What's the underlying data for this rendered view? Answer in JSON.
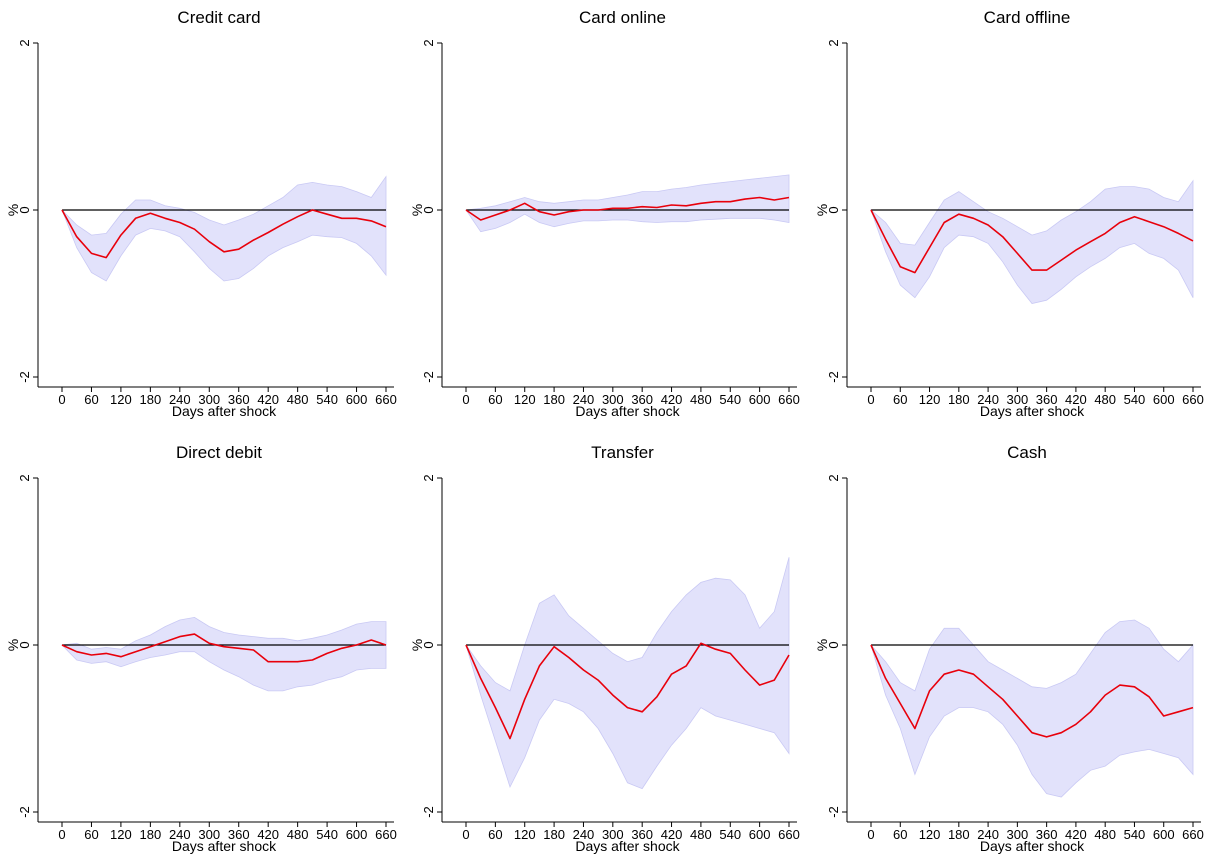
{
  "figure": {
    "background": "#ffffff"
  },
  "style": {
    "band_color": "#e2e2fb",
    "band_edge_color": "#c9c9f4",
    "line_color": "#e8000b",
    "zero_color": "#000000"
  },
  "chart_data": [
    {
      "type": "line",
      "title": "Credit card",
      "xlabel": "Days after shock",
      "ylabel": "%",
      "xlim": [
        0,
        660
      ],
      "ylim": [
        -2,
        2
      ],
      "xticks": [
        0,
        60,
        120,
        180,
        240,
        300,
        360,
        420,
        480,
        540,
        600,
        660
      ],
      "yticks": [
        -2,
        0,
        2
      ],
      "x": [
        0,
        30,
        60,
        90,
        120,
        150,
        180,
        210,
        240,
        270,
        300,
        330,
        360,
        390,
        420,
        450,
        480,
        510,
        540,
        570,
        600,
        630,
        660
      ],
      "series": [
        {
          "role": "estimate",
          "values": [
            0,
            -0.32,
            -0.52,
            -0.57,
            -0.3,
            -0.1,
            -0.04,
            -0.1,
            -0.15,
            -0.23,
            -0.38,
            -0.5,
            -0.47,
            -0.36,
            -0.27,
            -0.17,
            -0.08,
            0.0,
            -0.05,
            -0.1,
            -0.1,
            -0.13,
            -0.2
          ]
        },
        {
          "role": "upper",
          "values": [
            0,
            -0.18,
            -0.3,
            -0.28,
            -0.05,
            0.12,
            0.12,
            0.05,
            0.02,
            -0.03,
            -0.12,
            -0.18,
            -0.12,
            -0.05,
            0.05,
            0.15,
            0.3,
            0.33,
            0.3,
            0.28,
            0.22,
            0.15,
            0.4
          ]
        },
        {
          "role": "lower",
          "values": [
            0,
            -0.45,
            -0.75,
            -0.85,
            -0.55,
            -0.3,
            -0.22,
            -0.25,
            -0.32,
            -0.5,
            -0.7,
            -0.85,
            -0.82,
            -0.7,
            -0.55,
            -0.45,
            -0.38,
            -0.3,
            -0.32,
            -0.33,
            -0.4,
            -0.55,
            -0.78
          ]
        }
      ]
    },
    {
      "type": "line",
      "title": "Card online",
      "xlabel": "Days after shock",
      "ylabel": "%",
      "xlim": [
        0,
        660
      ],
      "ylim": [
        -2,
        2
      ],
      "xticks": [
        0,
        60,
        120,
        180,
        240,
        300,
        360,
        420,
        480,
        540,
        600,
        660
      ],
      "yticks": [
        -2,
        0,
        2
      ],
      "x": [
        0,
        30,
        60,
        90,
        120,
        150,
        180,
        210,
        240,
        270,
        300,
        330,
        360,
        390,
        420,
        450,
        480,
        510,
        540,
        570,
        600,
        630,
        660
      ],
      "series": [
        {
          "role": "estimate",
          "values": [
            0,
            -0.12,
            -0.06,
            0.0,
            0.08,
            -0.02,
            -0.06,
            -0.02,
            0.0,
            0.0,
            0.02,
            0.02,
            0.04,
            0.03,
            0.06,
            0.05,
            0.08,
            0.1,
            0.1,
            0.13,
            0.15,
            0.12,
            0.15
          ]
        },
        {
          "role": "upper",
          "values": [
            0,
            0.02,
            0.05,
            0.1,
            0.15,
            0.1,
            0.08,
            0.1,
            0.12,
            0.12,
            0.15,
            0.18,
            0.22,
            0.22,
            0.25,
            0.27,
            0.3,
            0.32,
            0.34,
            0.36,
            0.38,
            0.4,
            0.42
          ]
        },
        {
          "role": "lower",
          "values": [
            0,
            -0.26,
            -0.22,
            -0.15,
            -0.05,
            -0.15,
            -0.2,
            -0.16,
            -0.13,
            -0.13,
            -0.12,
            -0.12,
            -0.14,
            -0.15,
            -0.14,
            -0.14,
            -0.12,
            -0.11,
            -0.1,
            -0.1,
            -0.1,
            -0.12,
            -0.15
          ]
        }
      ]
    },
    {
      "type": "line",
      "title": "Card offline",
      "xlabel": "Days after shock",
      "ylabel": "%",
      "xlim": [
        0,
        660
      ],
      "ylim": [
        -2,
        2
      ],
      "xticks": [
        0,
        60,
        120,
        180,
        240,
        300,
        360,
        420,
        480,
        540,
        600,
        660
      ],
      "yticks": [
        -2,
        0,
        2
      ],
      "x": [
        0,
        30,
        60,
        90,
        120,
        150,
        180,
        210,
        240,
        270,
        300,
        330,
        360,
        390,
        420,
        450,
        480,
        510,
        540,
        570,
        600,
        630,
        660
      ],
      "series": [
        {
          "role": "estimate",
          "values": [
            0,
            -0.35,
            -0.68,
            -0.75,
            -0.45,
            -0.15,
            -0.05,
            -0.1,
            -0.18,
            -0.32,
            -0.52,
            -0.72,
            -0.72,
            -0.6,
            -0.48,
            -0.38,
            -0.28,
            -0.15,
            -0.08,
            -0.14,
            -0.2,
            -0.28,
            -0.37
          ]
        },
        {
          "role": "upper",
          "values": [
            0,
            -0.15,
            -0.4,
            -0.42,
            -0.15,
            0.12,
            0.22,
            0.1,
            -0.02,
            -0.1,
            -0.2,
            -0.3,
            -0.25,
            -0.12,
            -0.02,
            0.1,
            0.25,
            0.28,
            0.28,
            0.25,
            0.15,
            0.1,
            0.35
          ]
        },
        {
          "role": "lower",
          "values": [
            0,
            -0.5,
            -0.9,
            -1.05,
            -0.8,
            -0.45,
            -0.3,
            -0.32,
            -0.4,
            -0.62,
            -0.9,
            -1.12,
            -1.08,
            -0.95,
            -0.8,
            -0.68,
            -0.58,
            -0.45,
            -0.4,
            -0.52,
            -0.58,
            -0.72,
            -1.05
          ]
        }
      ]
    },
    {
      "type": "line",
      "title": "Direct debit",
      "xlabel": "Days after shock",
      "ylabel": "%",
      "xlim": [
        0,
        660
      ],
      "ylim": [
        -2,
        2
      ],
      "xticks": [
        0,
        60,
        120,
        180,
        240,
        300,
        360,
        420,
        480,
        540,
        600,
        660
      ],
      "yticks": [
        -2,
        0,
        2
      ],
      "x": [
        0,
        30,
        60,
        90,
        120,
        150,
        180,
        210,
        240,
        270,
        300,
        330,
        360,
        390,
        420,
        450,
        480,
        510,
        540,
        570,
        600,
        630,
        660
      ],
      "series": [
        {
          "role": "estimate",
          "values": [
            0,
            -0.08,
            -0.12,
            -0.1,
            -0.14,
            -0.08,
            -0.02,
            0.04,
            0.1,
            0.13,
            0.02,
            -0.02,
            -0.04,
            -0.06,
            -0.2,
            -0.2,
            -0.2,
            -0.18,
            -0.1,
            -0.04,
            0.0,
            0.06,
            0.0
          ]
        },
        {
          "role": "upper",
          "values": [
            0,
            0.02,
            -0.05,
            -0.03,
            -0.05,
            0.05,
            0.12,
            0.22,
            0.3,
            0.33,
            0.22,
            0.15,
            0.12,
            0.1,
            0.08,
            0.08,
            0.05,
            0.08,
            0.12,
            0.18,
            0.25,
            0.28,
            0.28
          ]
        },
        {
          "role": "lower",
          "values": [
            0,
            -0.18,
            -0.22,
            -0.2,
            -0.26,
            -0.2,
            -0.15,
            -0.12,
            -0.08,
            -0.08,
            -0.2,
            -0.3,
            -0.38,
            -0.48,
            -0.55,
            -0.55,
            -0.5,
            -0.48,
            -0.42,
            -0.38,
            -0.3,
            -0.28,
            -0.28
          ]
        }
      ]
    },
    {
      "type": "line",
      "title": "Transfer",
      "xlabel": "Days after shock",
      "ylabel": "%",
      "xlim": [
        0,
        660
      ],
      "ylim": [
        -2,
        2
      ],
      "xticks": [
        0,
        60,
        120,
        180,
        240,
        300,
        360,
        420,
        480,
        540,
        600,
        660
      ],
      "yticks": [
        -2,
        0,
        2
      ],
      "x": [
        0,
        30,
        60,
        90,
        120,
        150,
        180,
        210,
        240,
        270,
        300,
        330,
        360,
        390,
        420,
        450,
        480,
        510,
        540,
        570,
        600,
        630,
        660
      ],
      "series": [
        {
          "role": "estimate",
          "values": [
            0,
            -0.4,
            -0.75,
            -1.12,
            -0.65,
            -0.25,
            -0.02,
            -0.15,
            -0.3,
            -0.42,
            -0.6,
            -0.75,
            -0.8,
            -0.62,
            -0.35,
            -0.25,
            0.02,
            -0.05,
            -0.1,
            -0.3,
            -0.48,
            -0.42,
            -0.12
          ]
        },
        {
          "role": "upper",
          "values": [
            0,
            -0.25,
            -0.45,
            -0.55,
            0.0,
            0.5,
            0.6,
            0.35,
            0.2,
            0.05,
            -0.1,
            -0.2,
            -0.15,
            0.15,
            0.4,
            0.6,
            0.75,
            0.8,
            0.78,
            0.6,
            0.2,
            0.4,
            1.05
          ]
        },
        {
          "role": "lower",
          "values": [
            0,
            -0.6,
            -1.15,
            -1.7,
            -1.35,
            -0.9,
            -0.65,
            -0.7,
            -0.8,
            -1.0,
            -1.3,
            -1.65,
            -1.72,
            -1.45,
            -1.2,
            -1.0,
            -0.75,
            -0.85,
            -0.9,
            -0.95,
            -1.0,
            -1.05,
            -1.3
          ]
        }
      ]
    },
    {
      "type": "line",
      "title": "Cash",
      "xlabel": "Days after shock",
      "ylabel": "%",
      "xlim": [
        0,
        660
      ],
      "ylim": [
        -2,
        2
      ],
      "xticks": [
        0,
        60,
        120,
        180,
        240,
        300,
        360,
        420,
        480,
        540,
        600,
        660
      ],
      "yticks": [
        -2,
        0,
        2
      ],
      "x": [
        0,
        30,
        60,
        90,
        120,
        150,
        180,
        210,
        240,
        270,
        300,
        330,
        360,
        390,
        420,
        450,
        480,
        510,
        540,
        570,
        600,
        630,
        660
      ],
      "series": [
        {
          "role": "estimate",
          "values": [
            0,
            -0.4,
            -0.7,
            -1.0,
            -0.55,
            -0.35,
            -0.3,
            -0.35,
            -0.5,
            -0.65,
            -0.85,
            -1.05,
            -1.1,
            -1.05,
            -0.95,
            -0.8,
            -0.6,
            -0.48,
            -0.5,
            -0.62,
            -0.85,
            -0.8,
            -0.75
          ]
        },
        {
          "role": "upper",
          "values": [
            0,
            -0.2,
            -0.45,
            -0.55,
            -0.05,
            0.2,
            0.2,
            0.0,
            -0.2,
            -0.3,
            -0.4,
            -0.5,
            -0.52,
            -0.45,
            -0.35,
            -0.1,
            0.15,
            0.28,
            0.3,
            0.2,
            -0.05,
            -0.2,
            0.0
          ]
        },
        {
          "role": "lower",
          "values": [
            0,
            -0.6,
            -1.0,
            -1.55,
            -1.1,
            -0.85,
            -0.75,
            -0.75,
            -0.8,
            -0.95,
            -1.2,
            -1.55,
            -1.78,
            -1.82,
            -1.65,
            -1.5,
            -1.45,
            -1.32,
            -1.28,
            -1.25,
            -1.3,
            -1.35,
            -1.55
          ]
        }
      ]
    }
  ]
}
